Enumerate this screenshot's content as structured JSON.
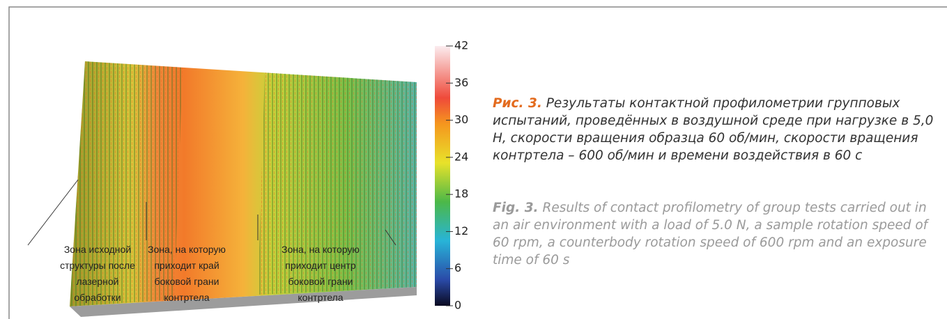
{
  "colorbar": {
    "range": [
      0,
      42
    ],
    "ticks": [
      0,
      6,
      12,
      18,
      24,
      30,
      36,
      42
    ]
  },
  "zones": [
    {
      "lines": [
        "Зона исходной",
        "структуры после",
        "лазерной",
        "обработки"
      ]
    },
    {
      "lines": [
        "Зона, на которую",
        "приходит край",
        "боковой грани",
        "контртела"
      ]
    },
    {
      "lines": [
        "Зона, на которую",
        "приходит центр",
        "боковой грани",
        "контртела"
      ]
    }
  ],
  "caption": {
    "ru": {
      "label": "Рис. 3.",
      "text": "Результаты контактной профилометрии групповых испытаний, проведённых в воздушной среде при нагрузке в 5,0 Н, скорости вращения образца 60 об/мин, скорости вращения контртела – 600 об/мин и времени воздействия в 60 с"
    },
    "en": {
      "label": "Fig. 3.",
      "text": "Results of contact profilometry of group tests carried out in an air environment with a load of 5.0 N, a sample rotation speed of 60 rpm, a counterbody rotation speed of 600 rpm and an exposure time of 60 s"
    }
  }
}
